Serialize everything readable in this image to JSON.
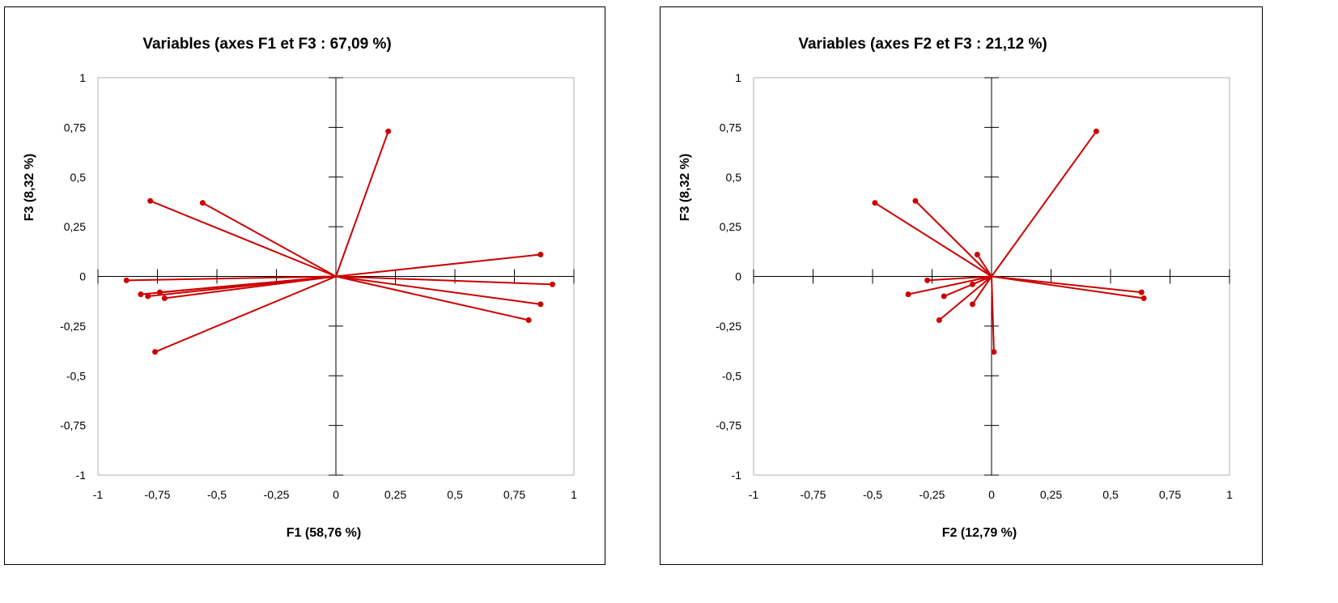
{
  "chart_data": [
    {
      "type": "scatter",
      "title": "Variables (axes F1 et F3 : 67,09 %)",
      "xlabel": "F1 (58,76 %)",
      "ylabel": "F3 (8,32 %)",
      "xlim": [
        -1,
        1
      ],
      "ylim": [
        -1,
        1
      ],
      "ticks": [
        "-1",
        "-0,75",
        "-0,5",
        "-0,25",
        "0",
        "0,25",
        "0,5",
        "0,75",
        "1"
      ],
      "grid": false,
      "color": "#cc0000",
      "points": [
        {
          "x": 0.22,
          "y": 0.73
        },
        {
          "x": -0.78,
          "y": 0.38
        },
        {
          "x": -0.56,
          "y": 0.37
        },
        {
          "x": 0.86,
          "y": 0.11
        },
        {
          "x": -0.88,
          "y": -0.02
        },
        {
          "x": -0.82,
          "y": -0.09
        },
        {
          "x": -0.79,
          "y": -0.1
        },
        {
          "x": -0.74,
          "y": -0.08
        },
        {
          "x": -0.72,
          "y": -0.11
        },
        {
          "x": 0.91,
          "y": -0.04
        },
        {
          "x": 0.86,
          "y": -0.14
        },
        {
          "x": 0.81,
          "y": -0.22
        },
        {
          "x": -0.76,
          "y": -0.38
        }
      ]
    },
    {
      "type": "scatter",
      "title": "Variables (axes F2 et F3 : 21,12 %)",
      "xlabel": "F2 (12,79 %)",
      "ylabel": "F3 (8,32 %)",
      "xlim": [
        -1,
        1
      ],
      "ylim": [
        -1,
        1
      ],
      "ticks": [
        "-1",
        "-0,75",
        "-0,5",
        "-0,25",
        "0",
        "0,25",
        "0,5",
        "0,75",
        "1"
      ],
      "grid": false,
      "color": "#cc0000",
      "points": [
        {
          "x": 0.44,
          "y": 0.73
        },
        {
          "x": -0.49,
          "y": 0.37
        },
        {
          "x": -0.32,
          "y": 0.38
        },
        {
          "x": -0.06,
          "y": 0.11
        },
        {
          "x": -0.27,
          "y": -0.02
        },
        {
          "x": -0.35,
          "y": -0.09
        },
        {
          "x": -0.2,
          "y": -0.1
        },
        {
          "x": -0.08,
          "y": -0.04
        },
        {
          "x": -0.08,
          "y": -0.14
        },
        {
          "x": -0.22,
          "y": -0.22
        },
        {
          "x": 0.63,
          "y": -0.08
        },
        {
          "x": 0.64,
          "y": -0.11
        },
        {
          "x": 0.01,
          "y": -0.38
        }
      ]
    }
  ]
}
